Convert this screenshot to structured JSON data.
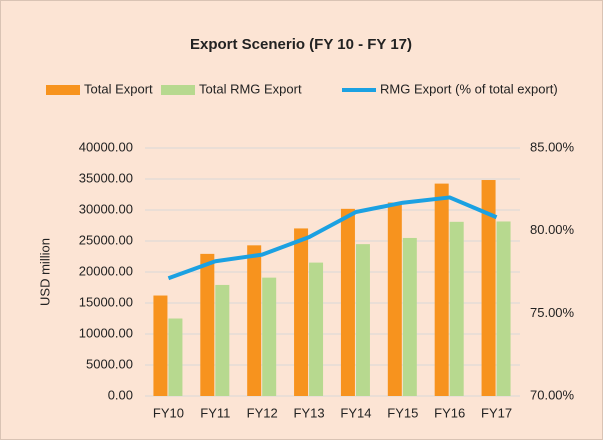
{
  "chart_data": {
    "type": "bar_line",
    "title": "Export Scenerio (FY 10 - FY 17)",
    "y_axis_label": "USD million",
    "categories": [
      "FY10",
      "FY11",
      "FY12",
      "FY13",
      "FY14",
      "FY15",
      "FY16",
      "FY17"
    ],
    "series": [
      {
        "name": "Total Export",
        "color": "#f7931e",
        "type": "bar",
        "values": [
          16205,
          22924,
          24302,
          27027,
          30187,
          31209,
          34257,
          34835
        ]
      },
      {
        "name": "Total  RMG Export",
        "color": "#b7d98f",
        "type": "bar",
        "values": [
          12497,
          17914,
          19090,
          21516,
          24492,
          25491,
          28094,
          28150
        ]
      },
      {
        "name": "RMG Export (% of total export)",
        "color": "#1ba1e2",
        "type": "line",
        "axis": "y2",
        "values": [
          77.12,
          78.15,
          78.55,
          79.61,
          81.13,
          81.69,
          82.01,
          80.81
        ]
      }
    ],
    "ylim": [
      0,
      40000
    ],
    "yticks": [
      {
        "value": 0,
        "label": "0.00"
      },
      {
        "value": 5000,
        "label": "5000.00"
      },
      {
        "value": 10000,
        "label": "10000.00"
      },
      {
        "value": 15000,
        "label": "15000.00"
      },
      {
        "value": 20000,
        "label": "20000.00"
      },
      {
        "value": 25000,
        "label": "25000.00"
      },
      {
        "value": 30000,
        "label": "30000.00"
      },
      {
        "value": 35000,
        "label": "35000.00"
      },
      {
        "value": 40000,
        "label": "40000.00"
      }
    ],
    "y2lim": [
      70,
      85
    ],
    "y2ticks": [
      {
        "value": 70,
        "label": "70.00%"
      },
      {
        "value": 75,
        "label": "75.00%"
      },
      {
        "value": 80,
        "label": "80.00%"
      },
      {
        "value": 85,
        "label": "85.00%"
      }
    ],
    "grid": true,
    "legend": "top"
  }
}
